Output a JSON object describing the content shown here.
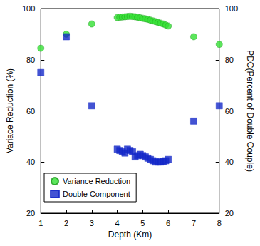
{
  "chart_data": {
    "type": "scatter",
    "x_label": "Depth (Km)",
    "y_label": "Variace Reduction (%)",
    "y2_label": "PDC(Percent of Double Couple)",
    "x": [
      1,
      2,
      3,
      4.0,
      4.1,
      4.2,
      4.3,
      4.4,
      4.5,
      4.6,
      4.7,
      4.8,
      4.9,
      5.0,
      5.1,
      5.2,
      5.3,
      5.4,
      5.5,
      5.6,
      5.7,
      5.8,
      5.9,
      6.0,
      7,
      8
    ],
    "series": [
      {
        "name": "Variance Reduction",
        "color": "#33e033",
        "marker": "circle",
        "values": [
          84.5,
          90,
          94,
          96.5,
          96.6,
          96.7,
          96.8,
          96.9,
          97.0,
          96.9,
          96.8,
          96.6,
          96.4,
          96.2,
          96.0,
          95.8,
          95.5,
          95.2,
          94.9,
          94.6,
          94.3,
          94.0,
          93.6,
          93.2,
          89,
          86
        ]
      },
      {
        "name": "Double Component",
        "color": "#1428c8",
        "marker": "square",
        "axis": "y2",
        "values": [
          75,
          89,
          62,
          45,
          44.5,
          44,
          43.5,
          45,
          44.5,
          44,
          42,
          42.5,
          43,
          42.5,
          42,
          41.5,
          41,
          40.5,
          40,
          40,
          40,
          40.2,
          40.5,
          41,
          56,
          62
        ]
      }
    ],
    "xlim": [
      1,
      8
    ],
    "xticks": [
      1,
      2,
      3,
      4,
      5,
      6,
      7,
      8
    ],
    "ylim": [
      20,
      100
    ],
    "yticks": [
      20,
      40,
      60,
      80,
      100
    ],
    "y2lim": [
      20,
      100
    ],
    "y2ticks": [
      20,
      40,
      60,
      80,
      100
    ],
    "grid": false,
    "legend": "lower left"
  }
}
